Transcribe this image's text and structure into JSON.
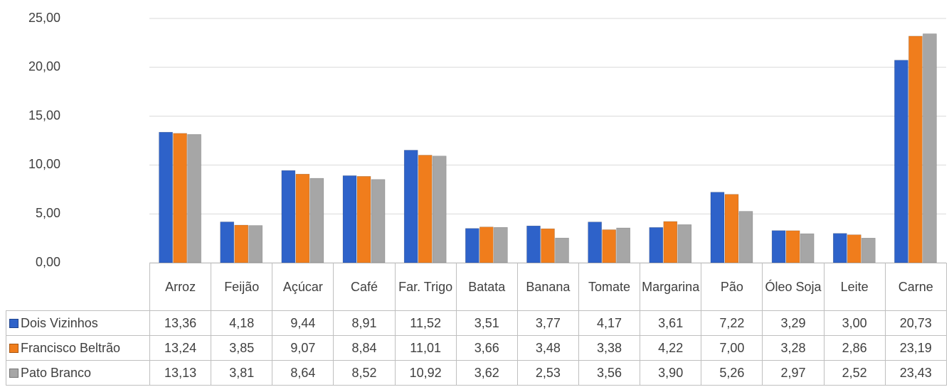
{
  "chart_data": {
    "type": "bar",
    "categories": [
      "Arroz",
      "Feijão",
      "Açúcar",
      "Café",
      "Far. Trigo",
      "Batata",
      "Banana",
      "Tomate",
      "Margarina",
      "Pão",
      "Óleo Soja",
      "Leite",
      "Carne"
    ],
    "series": [
      {
        "name": "Dois Vizinhos",
        "color": "#2e62c9",
        "values": [
          13.36,
          4.18,
          9.44,
          8.91,
          11.52,
          3.51,
          3.77,
          4.17,
          3.61,
          7.22,
          3.29,
          3.0,
          20.73
        ],
        "value_labels": [
          "13,36",
          "4,18",
          "9,44",
          "8,91",
          "11,52",
          "3,51",
          "3,77",
          "4,17",
          "3,61",
          "7,22",
          "3,29",
          "3,00",
          "20,73"
        ]
      },
      {
        "name": "Francisco Beltrão",
        "color": "#f07d1c",
        "values": [
          13.24,
          3.85,
          9.07,
          8.84,
          11.01,
          3.66,
          3.48,
          3.38,
          4.22,
          7.0,
          3.28,
          2.86,
          23.19
        ],
        "value_labels": [
          "13,24",
          "3,85",
          "9,07",
          "8,84",
          "11,01",
          "3,66",
          "3,48",
          "3,38",
          "4,22",
          "7,00",
          "3,28",
          "2,86",
          "23,19"
        ]
      },
      {
        "name": "Pato Branco",
        "color": "#a6a6a6",
        "values": [
          13.13,
          3.81,
          8.64,
          8.52,
          10.92,
          3.62,
          2.53,
          3.56,
          3.9,
          5.26,
          2.97,
          2.52,
          23.43
        ],
        "value_labels": [
          "13,13",
          "3,81",
          "8,64",
          "8,52",
          "10,92",
          "3,62",
          "2,53",
          "3,56",
          "3,90",
          "5,26",
          "2,97",
          "2,52",
          "23,43"
        ]
      }
    ],
    "ylim": [
      0,
      25
    ],
    "yticks": [
      {
        "value": 0,
        "label": "0,00"
      },
      {
        "value": 5,
        "label": "5,00"
      },
      {
        "value": 10,
        "label": "10,00"
      },
      {
        "value": 15,
        "label": "15,00"
      },
      {
        "value": 20,
        "label": "20,00"
      },
      {
        "value": 25,
        "label": "25,00"
      }
    ],
    "grid": true
  }
}
